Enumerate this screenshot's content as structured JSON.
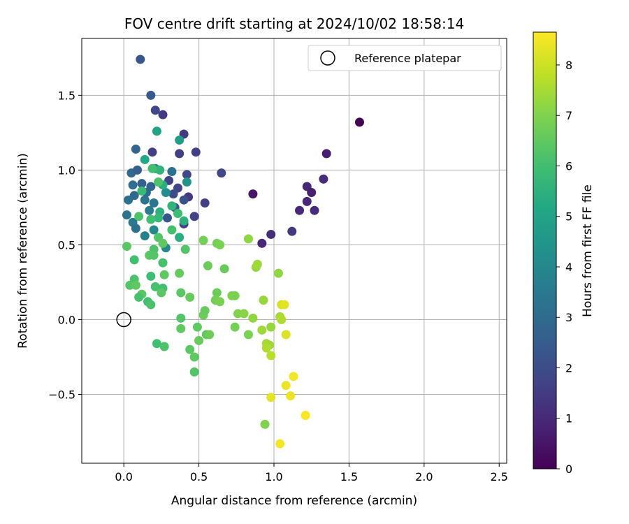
{
  "chart_data": {
    "type": "scatter",
    "title": "FOV centre drift starting at 2024/10/02 18:58:14",
    "xlabel": "Angular distance from reference (arcmin)",
    "ylabel": "Rotation from reference (arcmin)",
    "xlim": [
      -0.28,
      2.55
    ],
    "ylim": [
      -0.96,
      1.88
    ],
    "xticks": [
      "0.0",
      "0.5",
      "1.0",
      "1.5",
      "2.0",
      "2.5"
    ],
    "xtick_values": [
      0,
      0.5,
      1,
      1.5,
      2,
      2.5
    ],
    "yticks": [
      "−0.5",
      "0.0",
      "0.5",
      "1.0",
      "1.5"
    ],
    "ytick_values": [
      -0.5,
      0,
      0.5,
      1,
      1.5
    ],
    "grid": true,
    "colormap": "viridis",
    "colorbar": {
      "label": "Hours from first FF file",
      "min": 0,
      "max": 8.65,
      "ticks": [
        "0",
        "1",
        "2",
        "3",
        "4",
        "5",
        "6",
        "7",
        "8"
      ],
      "tick_values": [
        0,
        1,
        2,
        3,
        4,
        5,
        6,
        7,
        8
      ]
    },
    "legend": {
      "label": "Reference platepar",
      "position": "upper right"
    },
    "reference_point": {
      "x": 0,
      "y": 0
    },
    "points": [
      {
        "x": 1.57,
        "y": 1.32,
        "h": 0.0
      },
      {
        "x": 0.86,
        "y": 0.84,
        "h": 0.5
      },
      {
        "x": 1.35,
        "y": 1.11,
        "h": 0.7
      },
      {
        "x": 1.33,
        "y": 0.94,
        "h": 1.1
      },
      {
        "x": 1.22,
        "y": 0.89,
        "h": 1.0
      },
      {
        "x": 1.25,
        "y": 0.85,
        "h": 0.8
      },
      {
        "x": 1.22,
        "y": 0.79,
        "h": 1.0
      },
      {
        "x": 1.17,
        "y": 0.73,
        "h": 1.0
      },
      {
        "x": 1.27,
        "y": 0.73,
        "h": 1.1
      },
      {
        "x": 1.12,
        "y": 0.59,
        "h": 1.4
      },
      {
        "x": 0.98,
        "y": 0.57,
        "h": 1.1
      },
      {
        "x": 0.92,
        "y": 0.51,
        "h": 1.0
      },
      {
        "x": 0.65,
        "y": 0.98,
        "h": 1.8
      },
      {
        "x": 0.54,
        "y": 0.78,
        "h": 1.6
      },
      {
        "x": 0.48,
        "y": 1.12,
        "h": 1.6
      },
      {
        "x": 0.4,
        "y": 1.24,
        "h": 1.5
      },
      {
        "x": 0.26,
        "y": 1.37,
        "h": 1.5
      },
      {
        "x": 0.21,
        "y": 1.4,
        "h": 1.8
      },
      {
        "x": 0.18,
        "y": 1.5,
        "h": 2.4
      },
      {
        "x": 0.11,
        "y": 1.74,
        "h": 2.3
      },
      {
        "x": 0.19,
        "y": 1.12,
        "h": 1.6
      },
      {
        "x": 0.37,
        "y": 1.11,
        "h": 1.6
      },
      {
        "x": 0.42,
        "y": 0.97,
        "h": 1.9
      },
      {
        "x": 0.43,
        "y": 0.82,
        "h": 1.5
      },
      {
        "x": 0.47,
        "y": 0.69,
        "h": 1.7
      },
      {
        "x": 0.4,
        "y": 0.64,
        "h": 1.7
      },
      {
        "x": 0.36,
        "y": 0.88,
        "h": 1.8
      },
      {
        "x": 0.3,
        "y": 0.93,
        "h": 1.7
      },
      {
        "x": 0.33,
        "y": 0.84,
        "h": 2.0
      },
      {
        "x": 0.4,
        "y": 0.8,
        "h": 2.1
      },
      {
        "x": 0.29,
        "y": 0.68,
        "h": 2.3
      },
      {
        "x": 0.34,
        "y": 0.75,
        "h": 2.4
      },
      {
        "x": 0.08,
        "y": 1.14,
        "h": 2.8
      },
      {
        "x": 0.05,
        "y": 0.98,
        "h": 3.0
      },
      {
        "x": 0.09,
        "y": 1.0,
        "h": 2.6
      },
      {
        "x": 0.12,
        "y": 0.91,
        "h": 2.7
      },
      {
        "x": 0.06,
        "y": 0.9,
        "h": 3.1
      },
      {
        "x": 0.03,
        "y": 0.8,
        "h": 3.2
      },
      {
        "x": 0.07,
        "y": 0.83,
        "h": 2.9
      },
      {
        "x": 0.15,
        "y": 0.85,
        "h": 3.0
      },
      {
        "x": 0.18,
        "y": 0.89,
        "h": 2.8
      },
      {
        "x": 0.14,
        "y": 0.8,
        "h": 3.3
      },
      {
        "x": 0.2,
        "y": 0.78,
        "h": 3.4
      },
      {
        "x": 0.17,
        "y": 0.73,
        "h": 3.6
      },
      {
        "x": 0.02,
        "y": 0.7,
        "h": 3.3
      },
      {
        "x": 0.06,
        "y": 0.65,
        "h": 3.5
      },
      {
        "x": 0.08,
        "y": 0.61,
        "h": 3.2
      },
      {
        "x": 0.14,
        "y": 0.56,
        "h": 3.8
      },
      {
        "x": 0.2,
        "y": 0.6,
        "h": 4.0
      },
      {
        "x": 0.28,
        "y": 0.48,
        "h": 4.0
      },
      {
        "x": 0.32,
        "y": 0.99,
        "h": 3.2
      },
      {
        "x": 0.37,
        "y": 1.2,
        "h": 4.8
      },
      {
        "x": 0.21,
        "y": 1.01,
        "h": 3.9
      },
      {
        "x": 0.28,
        "y": 0.85,
        "h": 4.2
      },
      {
        "x": 0.42,
        "y": 0.92,
        "h": 4.4
      },
      {
        "x": 0.22,
        "y": 1.26,
        "h": 5.0
      },
      {
        "x": 0.14,
        "y": 1.07,
        "h": 5.2
      },
      {
        "x": 0.24,
        "y": 1.0,
        "h": 5.6
      },
      {
        "x": 0.26,
        "y": 0.9,
        "h": 5.4
      },
      {
        "x": 0.12,
        "y": 0.86,
        "h": 5.8
      },
      {
        "x": 0.24,
        "y": 0.72,
        "h": 5.5
      },
      {
        "x": 0.23,
        "y": 0.68,
        "h": 5.7
      },
      {
        "x": 0.32,
        "y": 0.76,
        "h": 5.6
      },
      {
        "x": 0.36,
        "y": 0.71,
        "h": 5.9
      },
      {
        "x": 0.4,
        "y": 0.66,
        "h": 5.5
      },
      {
        "x": 0.37,
        "y": 0.55,
        "h": 5.4
      },
      {
        "x": 0.32,
        "y": 0.6,
        "h": 6.1
      },
      {
        "x": 0.1,
        "y": 0.69,
        "h": 6.2
      },
      {
        "x": 0.19,
        "y": 1.01,
        "h": 6.0
      },
      {
        "x": 0.23,
        "y": 0.92,
        "h": 6.2
      },
      {
        "x": 0.18,
        "y": 0.67,
        "h": 6.0
      },
      {
        "x": 0.23,
        "y": 0.55,
        "h": 6.3
      },
      {
        "x": 0.2,
        "y": 0.47,
        "h": 6.2
      },
      {
        "x": 0.17,
        "y": 0.43,
        "h": 6.4
      },
      {
        "x": 0.26,
        "y": 0.51,
        "h": 6.5
      },
      {
        "x": 0.2,
        "y": 0.43,
        "h": 6.3
      },
      {
        "x": 0.02,
        "y": 0.49,
        "h": 6.4
      },
      {
        "x": 0.07,
        "y": 0.4,
        "h": 6.0
      },
      {
        "x": 0.26,
        "y": 0.38,
        "h": 6.1
      },
      {
        "x": 0.18,
        "y": 0.29,
        "h": 5.9
      },
      {
        "x": 0.07,
        "y": 0.27,
        "h": 6.2
      },
      {
        "x": 0.04,
        "y": 0.23,
        "h": 6.3
      },
      {
        "x": 0.08,
        "y": 0.23,
        "h": 6.5
      },
      {
        "x": 0.21,
        "y": 0.22,
        "h": 6.1
      },
      {
        "x": 0.26,
        "y": 0.21,
        "h": 6.0
      },
      {
        "x": 0.12,
        "y": 0.17,
        "h": 6.4
      },
      {
        "x": 0.1,
        "y": 0.15,
        "h": 6.1
      },
      {
        "x": 0.16,
        "y": 0.12,
        "h": 6.0
      },
      {
        "x": 0.18,
        "y": 0.1,
        "h": 6.2
      },
      {
        "x": 0.25,
        "y": 0.18,
        "h": 6.4
      },
      {
        "x": 0.27,
        "y": 0.3,
        "h": 6.5
      },
      {
        "x": 0.37,
        "y": 0.31,
        "h": 6.6
      },
      {
        "x": 0.41,
        "y": 0.47,
        "h": 6.3
      },
      {
        "x": 0.38,
        "y": 0.18,
        "h": 6.4
      },
      {
        "x": 0.44,
        "y": 0.15,
        "h": 6.6
      },
      {
        "x": 0.38,
        "y": 0.01,
        "h": 6.3
      },
      {
        "x": 0.38,
        "y": -0.06,
        "h": 6.5
      },
      {
        "x": 0.22,
        "y": -0.16,
        "h": 6.0
      },
      {
        "x": 0.27,
        "y": -0.18,
        "h": 6.2
      },
      {
        "x": 0.44,
        "y": -0.2,
        "h": 6.4
      },
      {
        "x": 0.47,
        "y": -0.25,
        "h": 6.5
      },
      {
        "x": 0.47,
        "y": -0.35,
        "h": 6.3
      },
      {
        "x": 0.5,
        "y": -0.14,
        "h": 6.6
      },
      {
        "x": 0.49,
        "y": -0.05,
        "h": 6.5
      },
      {
        "x": 0.53,
        "y": 0.03,
        "h": 6.7
      },
      {
        "x": 0.54,
        "y": 0.06,
        "h": 6.6
      },
      {
        "x": 0.55,
        "y": -0.1,
        "h": 6.5
      },
      {
        "x": 0.57,
        "y": -0.1,
        "h": 6.7
      },
      {
        "x": 0.53,
        "y": 0.53,
        "h": 6.8
      },
      {
        "x": 0.62,
        "y": 0.51,
        "h": 6.8
      },
      {
        "x": 0.64,
        "y": 0.5,
        "h": 6.9
      },
      {
        "x": 0.56,
        "y": 0.36,
        "h": 6.7
      },
      {
        "x": 0.67,
        "y": 0.34,
        "h": 6.6
      },
      {
        "x": 0.62,
        "y": 0.18,
        "h": 6.7
      },
      {
        "x": 0.61,
        "y": 0.13,
        "h": 6.8
      },
      {
        "x": 0.64,
        "y": 0.12,
        "h": 6.9
      },
      {
        "x": 0.72,
        "y": 0.16,
        "h": 7.0
      },
      {
        "x": 0.74,
        "y": 0.16,
        "h": 6.9
      },
      {
        "x": 0.76,
        "y": 0.04,
        "h": 7.0
      },
      {
        "x": 0.8,
        "y": 0.04,
        "h": 7.1
      },
      {
        "x": 0.74,
        "y": -0.05,
        "h": 6.8
      },
      {
        "x": 0.83,
        "y": -0.1,
        "h": 6.9
      },
      {
        "x": 0.86,
        "y": 0.01,
        "h": 7.2
      },
      {
        "x": 0.83,
        "y": 0.54,
        "h": 7.2
      },
      {
        "x": 0.88,
        "y": 0.35,
        "h": 7.3
      },
      {
        "x": 0.89,
        "y": 0.37,
        "h": 7.4
      },
      {
        "x": 0.93,
        "y": 0.13,
        "h": 7.3
      },
      {
        "x": 0.92,
        "y": -0.07,
        "h": 7.4
      },
      {
        "x": 0.98,
        "y": -0.05,
        "h": 7.3
      },
      {
        "x": 0.95,
        "y": -0.16,
        "h": 7.5
      },
      {
        "x": 0.97,
        "y": -0.17,
        "h": 7.4
      },
      {
        "x": 0.95,
        "y": -0.19,
        "h": 7.6
      },
      {
        "x": 0.98,
        "y": -0.24,
        "h": 7.7
      },
      {
        "x": 1.03,
        "y": 0.31,
        "h": 7.2
      },
      {
        "x": 1.04,
        "y": 0.02,
        "h": 7.5
      },
      {
        "x": 1.05,
        "y": 0.0,
        "h": 7.6
      },
      {
        "x": 1.05,
        "y": 0.1,
        "h": 8.1
      },
      {
        "x": 1.07,
        "y": 0.1,
        "h": 8.3
      },
      {
        "x": 1.08,
        "y": -0.1,
        "h": 8.2
      },
      {
        "x": 0.94,
        "y": -0.7,
        "h": 7.0
      },
      {
        "x": 0.98,
        "y": -0.52,
        "h": 8.3
      },
      {
        "x": 1.08,
        "y": -0.44,
        "h": 8.4
      },
      {
        "x": 1.11,
        "y": -0.51,
        "h": 8.4
      },
      {
        "x": 1.13,
        "y": -0.38,
        "h": 8.5
      },
      {
        "x": 1.04,
        "y": -0.83,
        "h": 8.5
      },
      {
        "x": 1.21,
        "y": -0.64,
        "h": 8.6
      }
    ]
  }
}
